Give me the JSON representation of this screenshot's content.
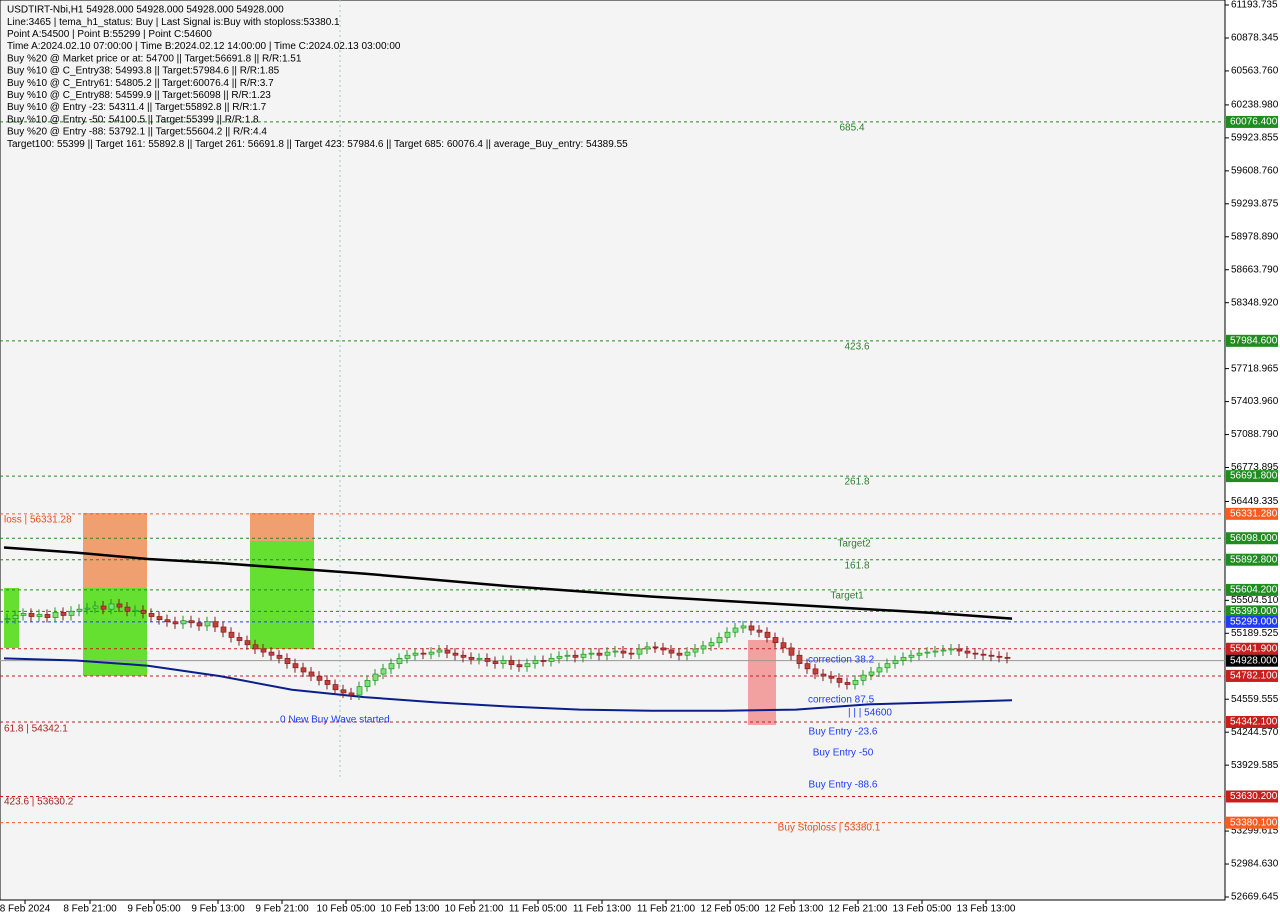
{
  "chart_data": {
    "type": "candlestick",
    "header": [
      "USDTIRT-Nbi,H1  54928.000 54928.000 54928.000 54928.000",
      "Line:3465  | tema_h1_status: Buy | Last Signal is:Buy with stoploss:53380.1",
      "Point A:54500 | Point B:55299 | Point C:54600",
      "Time A:2024.02.10 07:00:00 | Time B:2024.02.12 14:00:00 | Time C:2024.02.13 03:00:00",
      "Buy %20 @ Market price or at: 54700 || Target:56691.8 || R/R:1.51",
      "Buy %10 @ C_Entry38: 54993.8 || Target:57984.6 || R/R:1.85",
      "Buy %10 @ C_Entry61: 54805.2 || Target:60076.4 || R/R:3.7",
      "Buy %10 @ C_Entry88: 54599.9 || Target:56098 || R/R:1.23",
      "Buy %10 @ Entry -23: 54311.4 || Target:55892.8 || R/R:1.7",
      "Buy %10 @ Entry -50: 54100.5 || Target:55399 || R/R:1.8",
      "Buy %20 @ Entry -88: 53792.1 || Target:55604.2 || R/R:4.4",
      "Target100: 55399 || Target 161: 55892.8 || Target 261: 56691.8 || Target 423: 57984.6 || Target 685: 60076.4 || average_Buy_entry: 54389.55"
    ],
    "ylim": [
      52669.645,
      61193.735
    ],
    "yticks": [
      {
        "value": 61193.735,
        "label": "61193.735"
      },
      {
        "value": 60878.345,
        "label": "60878.345"
      },
      {
        "value": 60563.76,
        "label": "60563.760"
      },
      {
        "value": 60238.98,
        "label": "60238.980"
      },
      {
        "value": 59923.855,
        "label": "59923.855"
      },
      {
        "value": 59608.76,
        "label": "59608.760"
      },
      {
        "value": 59293.875,
        "label": "59293.875"
      },
      {
        "value": 58978.89,
        "label": "58978.890"
      },
      {
        "value": 58663.79,
        "label": "58663.790"
      },
      {
        "value": 58348.92,
        "label": "58348.920"
      },
      {
        "value": 57718.965,
        "label": "57718.965"
      },
      {
        "value": 57403.96,
        "label": "57403.960"
      },
      {
        "value": 57088.79,
        "label": "57088.790"
      },
      {
        "value": 56773.895,
        "label": "56773.895"
      },
      {
        "value": 56449.335,
        "label": "56449.335"
      },
      {
        "value": 55504.51,
        "label": "55504.510"
      },
      {
        "value": 55189.525,
        "label": "55189.525"
      },
      {
        "value": 54559.555,
        "label": "54559.555"
      },
      {
        "value": 54244.57,
        "label": "54244.570"
      },
      {
        "value": 53929.585,
        "label": "53929.585"
      },
      {
        "value": 53299.615,
        "label": "53299.615"
      },
      {
        "value": 52984.63,
        "label": "52984.630"
      },
      {
        "value": 52669.645,
        "label": "52669.645"
      }
    ],
    "levels": [
      {
        "value": 60076.4,
        "label": "60076.400",
        "color": "#1e8c1e"
      },
      {
        "value": 57984.6,
        "label": "57984.600",
        "color": "#1e8c1e"
      },
      {
        "value": 56691.8,
        "label": "56691.800",
        "color": "#1e8c1e"
      },
      {
        "value": 56331.28,
        "label": "56331.280",
        "color": "#ff5a1e"
      },
      {
        "value": 56098,
        "label": "56098.000",
        "color": "#1e8c1e"
      },
      {
        "value": 55892.8,
        "label": "55892.800",
        "color": "#1e8c1e"
      },
      {
        "value": 55604.2,
        "label": "55604.200",
        "color": "#1e8c1e"
      },
      {
        "value": 55399,
        "label": "55399.000",
        "color": "#1e8c1e"
      },
      {
        "value": 55299,
        "label": "55299.000",
        "color": "#1e3cff"
      },
      {
        "value": 55041.9,
        "label": "55041.900",
        "color": "#c81e1e"
      },
      {
        "value": 54928,
        "label": "54928.000",
        "color": "#000000"
      },
      {
        "value": 54782.1,
        "label": "54782.100",
        "color": "#c81e1e"
      },
      {
        "value": 54342.1,
        "label": "54342.100",
        "color": "#c81e1e"
      },
      {
        "value": 53630.2,
        "label": "53630.200",
        "color": "#c81e1e"
      },
      {
        "value": 53380.1,
        "label": "53380.100",
        "color": "#ff5a1e"
      }
    ],
    "annotations": [
      "685.4",
      "423.6",
      "261.8",
      "Target2",
      "161.8",
      "Target1",
      "loss | 56331.28",
      "61.8 | 54342.1",
      "423.6 | 53630.2",
      "0 New Buy Wave started",
      "correction 38.2",
      "correction 87.5",
      "| | | 54600",
      "Buy Entry -23.6",
      "Buy Entry -50",
      "Buy Entry -88.6",
      "Buy Stoploss | 53380.1"
    ],
    "x_labels": [
      "8 Feb 2024",
      "8 Feb 21:00",
      "9 Feb 05:00",
      "9 Feb 13:00",
      "9 Feb 21:00",
      "10 Feb 05:00",
      "10 Feb 13:00",
      "10 Feb 21:00",
      "11 Feb 05:00",
      "11 Feb 13:00",
      "11 Feb 21:00",
      "12 Feb 05:00",
      "12 Feb 13:00",
      "12 Feb 21:00",
      "13 Feb 05:00",
      "13 Feb 13:00"
    ],
    "closes": [
      55330,
      55360,
      55380,
      55350,
      55370,
      55340,
      55390,
      55360,
      55400,
      55420,
      55430,
      55450,
      55420,
      55470,
      55440,
      55400,
      55410,
      55380,
      55350,
      55320,
      55300,
      55280,
      55310,
      55290,
      55260,
      55300,
      55250,
      55200,
      55150,
      55120,
      55080,
      55040,
      55010,
      54980,
      54950,
      54900,
      54860,
      54820,
      54780,
      54740,
      54700,
      54650,
      54620,
      54600,
      54680,
      54740,
      54800,
      54850,
      54900,
      54950,
      54980,
      55000,
      54990,
      55010,
      55030,
      55000,
      54980,
      54960,
      54940,
      54950,
      54920,
      54900,
      54930,
      54890,
      54870,
      54900,
      54930,
      54920,
      54950,
      54970,
      54980,
      54960,
      54990,
      55000,
      54980,
      55010,
      55020,
      55000,
      54990,
      55040,
      55060,
      55050,
      55030,
      55000,
      54980,
      55010,
      55040,
      55070,
      55100,
      55150,
      55200,
      55240,
      55260,
      55220,
      55200,
      55150,
      55100,
      55050,
      54980,
      54900,
      54850,
      54800,
      54780,
      54760,
      54720,
      54700,
      54740,
      54790,
      54820,
      54860,
      54900,
      54930,
      54960,
      54980,
      55000,
      55010,
      55020,
      55030,
      55040,
      55020,
      55000,
      54990,
      54980,
      54970,
      54960,
      54950
    ],
    "ma_slow": [
      56010,
      55960,
      55900,
      55860,
      55810,
      55760,
      55700,
      55640,
      55590,
      55540,
      55500,
      55460,
      55420,
      55380,
      55330
    ],
    "ma_fast": [
      54950,
      54930,
      54880,
      54780,
      54650,
      54580,
      54530,
      54490,
      54460,
      54450,
      54450,
      54460,
      54510,
      54530,
      54550
    ]
  }
}
